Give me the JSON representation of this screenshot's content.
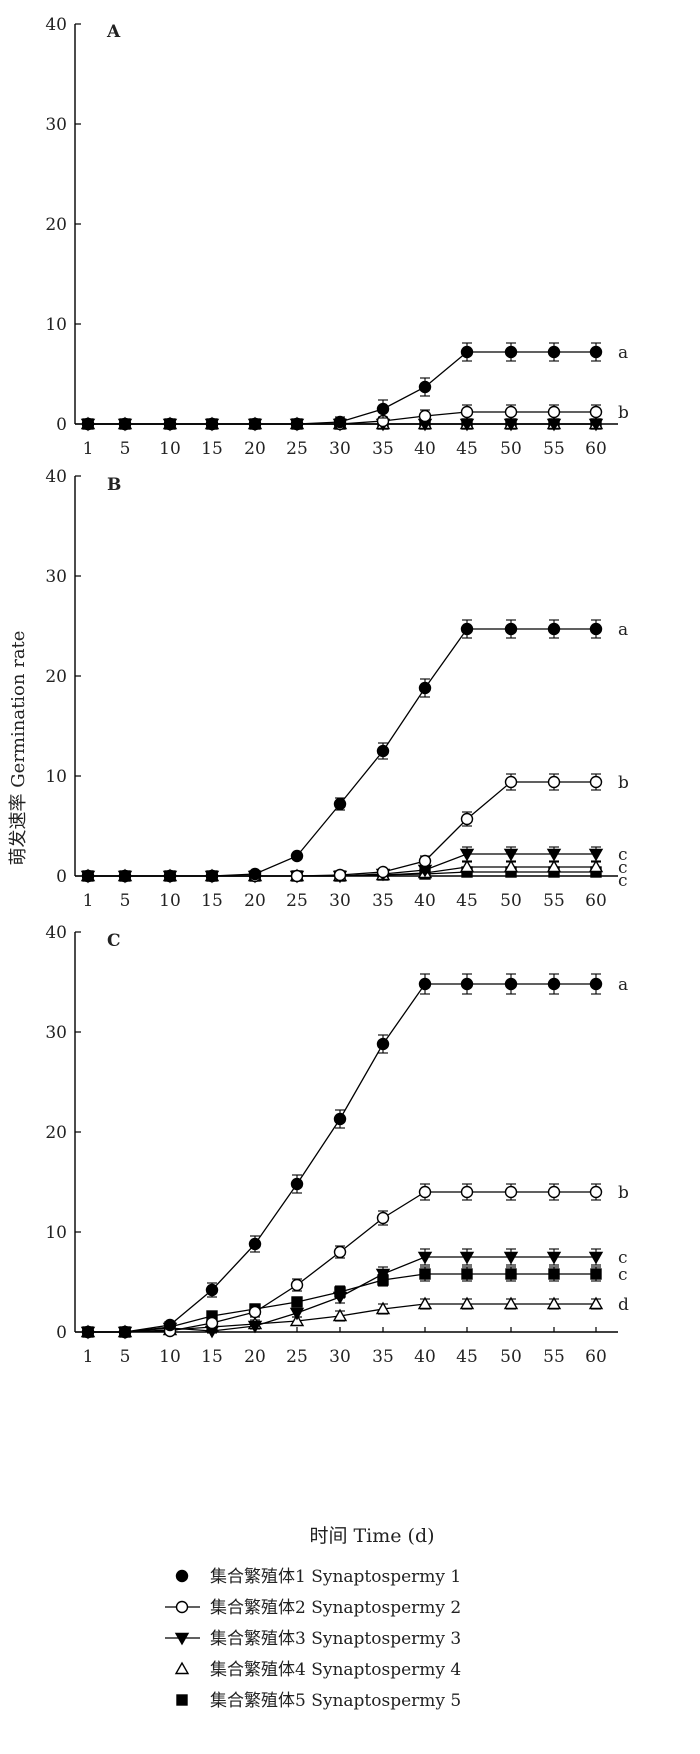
{
  "ylabel": "萌发速率 Germination rate",
  "xlabel": "时间 Time (d)",
  "series_names": [
    "集合繁殖体1 Synaptospermy 1",
    "集合繁殖体2 Synaptospermy 2",
    "集合繁殖体3 Synaptospermy 3",
    "集合繁殖体4 Synaptospermy 4",
    "集合繁殖体5 Synaptospermy 5"
  ],
  "markers": [
    "filled-circle",
    "open-circle",
    "filled-triangle-down",
    "open-triangle-up",
    "filled-square"
  ],
  "chart_data": [
    {
      "type": "line",
      "panel_label": "A",
      "categories": [
        "1",
        "5",
        "10",
        "15",
        "20",
        "25",
        "30",
        "35",
        "40",
        "45",
        "50",
        "55",
        "60"
      ],
      "ylim": [
        0,
        40
      ],
      "yticks": [
        0,
        10,
        20,
        30,
        40
      ],
      "series": [
        {
          "name": "集合繁殖体1 Synaptospermy 1",
          "values": [
            0,
            0,
            0,
            0,
            0,
            0,
            0.2,
            1.5,
            3.7,
            7.2,
            7.2,
            7.2,
            7.2
          ],
          "errors": [
            0,
            0,
            0,
            0,
            0,
            0,
            0.5,
            0.9,
            0.9,
            0.9,
            0.9,
            0.9,
            0.9
          ],
          "group": "a"
        },
        {
          "name": "集合繁殖体2 Synaptospermy 2",
          "values": [
            0,
            0,
            0,
            0,
            0,
            0,
            0,
            0.3,
            0.8,
            1.2,
            1.2,
            1.2,
            1.2
          ],
          "errors": [
            0,
            0,
            0,
            0,
            0,
            0,
            0,
            0.4,
            0.6,
            0.7,
            0.7,
            0.7,
            0.7
          ],
          "group": "b"
        },
        {
          "name": "集合繁殖体3 Synaptospermy 3",
          "values": [
            0,
            0,
            0,
            0,
            0,
            0,
            0,
            0,
            0,
            0,
            0,
            0,
            0
          ],
          "errors": [
            0,
            0,
            0,
            0,
            0,
            0,
            0,
            0,
            0,
            0,
            0,
            0,
            0
          ],
          "group": ""
        },
        {
          "name": "集合繁殖体4 Synaptospermy 4",
          "values": [
            0,
            0,
            0,
            0,
            0,
            0,
            0,
            0,
            0,
            0,
            0,
            0,
            0
          ],
          "errors": [
            0,
            0,
            0,
            0,
            0,
            0,
            0,
            0,
            0,
            0,
            0,
            0,
            0
          ],
          "group": ""
        },
        {
          "name": "集合繁殖体5 Synaptospermy 5",
          "values": [
            0,
            0,
            0,
            0,
            0,
            0,
            0,
            0,
            0,
            0,
            0,
            0,
            0
          ],
          "errors": [
            0,
            0,
            0,
            0,
            0,
            0,
            0,
            0,
            0,
            0,
            0,
            0,
            0
          ],
          "group": ""
        }
      ]
    },
    {
      "type": "line",
      "panel_label": "B",
      "categories": [
        "1",
        "5",
        "10",
        "15",
        "20",
        "25",
        "30",
        "35",
        "40",
        "45",
        "50",
        "55",
        "60"
      ],
      "ylim": [
        0,
        40
      ],
      "yticks": [
        0,
        10,
        20,
        30,
        40
      ],
      "series": [
        {
          "name": "集合繁殖体1 Synaptospermy 1",
          "values": [
            0,
            0,
            0,
            0,
            0.2,
            2.0,
            7.2,
            12.5,
            18.8,
            24.7,
            24.7,
            24.7,
            24.7
          ],
          "errors": [
            0,
            0,
            0,
            0,
            0.2,
            0.3,
            0.6,
            0.8,
            0.9,
            0.9,
            0.9,
            0.9,
            0.9
          ],
          "group": "a"
        },
        {
          "name": "集合繁殖体2 Synaptospermy 2",
          "values": [
            0,
            0,
            0,
            0,
            0,
            0,
            0.1,
            0.4,
            1.5,
            5.7,
            9.4,
            9.4,
            9.4
          ],
          "errors": [
            0,
            0,
            0,
            0,
            0,
            0,
            0.1,
            0.3,
            0.5,
            0.7,
            0.8,
            0.8,
            0.8
          ],
          "group": "b"
        },
        {
          "name": "集合繁殖体3 Synaptospermy 3",
          "values": [
            0,
            0,
            0,
            0,
            0,
            0,
            0,
            0.2,
            0.6,
            2.2,
            2.2,
            2.2,
            2.2
          ],
          "errors": [
            0,
            0,
            0,
            0,
            0,
            0,
            0,
            0.2,
            0.3,
            0.7,
            0.7,
            0.7,
            0.7
          ],
          "group": "c"
        },
        {
          "name": "集合繁殖体4 Synaptospermy 4",
          "values": [
            0,
            0,
            0,
            0,
            0,
            0,
            0,
            0.1,
            0.3,
            0.9,
            0.9,
            0.9,
            0.9
          ],
          "errors": [
            0,
            0,
            0,
            0,
            0,
            0,
            0,
            0.1,
            0.3,
            0.5,
            0.5,
            0.5,
            0.5
          ],
          "group": "c"
        },
        {
          "name": "集合繁殖体5 Synaptospermy 5",
          "values": [
            0,
            0,
            0,
            0,
            0,
            0,
            0,
            0.1,
            0.2,
            0.4,
            0.4,
            0.4,
            0.4
          ],
          "errors": [
            0,
            0,
            0,
            0,
            0,
            0,
            0,
            0.1,
            0.2,
            0.2,
            0.2,
            0.2,
            0.2
          ],
          "group": "c"
        }
      ]
    },
    {
      "type": "line",
      "panel_label": "C",
      "categories": [
        "1",
        "5",
        "10",
        "15",
        "20",
        "25",
        "30",
        "35",
        "40",
        "45",
        "50",
        "55",
        "60"
      ],
      "ylim": [
        0,
        40
      ],
      "yticks": [
        0,
        10,
        20,
        30,
        40
      ],
      "series": [
        {
          "name": "集合繁殖体1 Synaptospermy 1",
          "values": [
            0,
            0,
            0.7,
            4.2,
            8.8,
            14.8,
            21.3,
            28.8,
            34.8,
            34.8,
            34.8,
            34.8,
            34.8
          ],
          "errors": [
            0,
            0,
            0.3,
            0.7,
            0.8,
            0.9,
            0.9,
            0.9,
            1.0,
            1.0,
            1.0,
            1.0,
            1.0
          ],
          "group": "a"
        },
        {
          "name": "集合繁殖体2 Synaptospermy 2",
          "values": [
            0,
            0,
            0.1,
            0.9,
            2.0,
            4.7,
            8.0,
            11.4,
            14.0,
            14.0,
            14.0,
            14.0,
            14.0
          ],
          "errors": [
            0,
            0,
            0.2,
            0.4,
            0.5,
            0.6,
            0.6,
            0.7,
            0.8,
            0.8,
            0.8,
            0.8,
            0.8
          ],
          "group": "b"
        },
        {
          "name": "集合繁殖体3 Synaptospermy 3",
          "values": [
            0,
            0,
            0.4,
            0.1,
            0.6,
            1.9,
            3.5,
            5.8,
            7.5,
            7.5,
            7.5,
            7.5,
            7.5
          ],
          "errors": [
            0,
            0,
            0.2,
            0.2,
            0.3,
            0.4,
            0.6,
            0.7,
            0.8,
            0.8,
            0.8,
            0.8,
            0.8
          ],
          "group": "c"
        },
        {
          "name": "集合繁殖体4 Synaptospermy 4",
          "values": [
            0,
            0,
            0.2,
            0.5,
            0.8,
            1.1,
            1.6,
            2.3,
            2.8,
            2.8,
            2.8,
            2.8,
            2.8
          ],
          "errors": [
            0,
            0,
            0.2,
            0.3,
            0.4,
            0.4,
            0.5,
            0.5,
            0.5,
            0.5,
            0.5,
            0.5,
            0.5
          ],
          "group": "d"
        },
        {
          "name": "集合繁殖体5 Synaptospermy 5",
          "values": [
            0,
            0,
            0.5,
            1.6,
            2.3,
            3.0,
            4.0,
            5.2,
            5.8,
            5.8,
            5.8,
            5.8,
            5.8
          ],
          "errors": [
            0,
            0,
            0.3,
            0.4,
            0.5,
            0.5,
            0.6,
            0.6,
            0.7,
            0.7,
            0.7,
            0.7,
            0.7
          ],
          "group": "c"
        }
      ]
    }
  ]
}
